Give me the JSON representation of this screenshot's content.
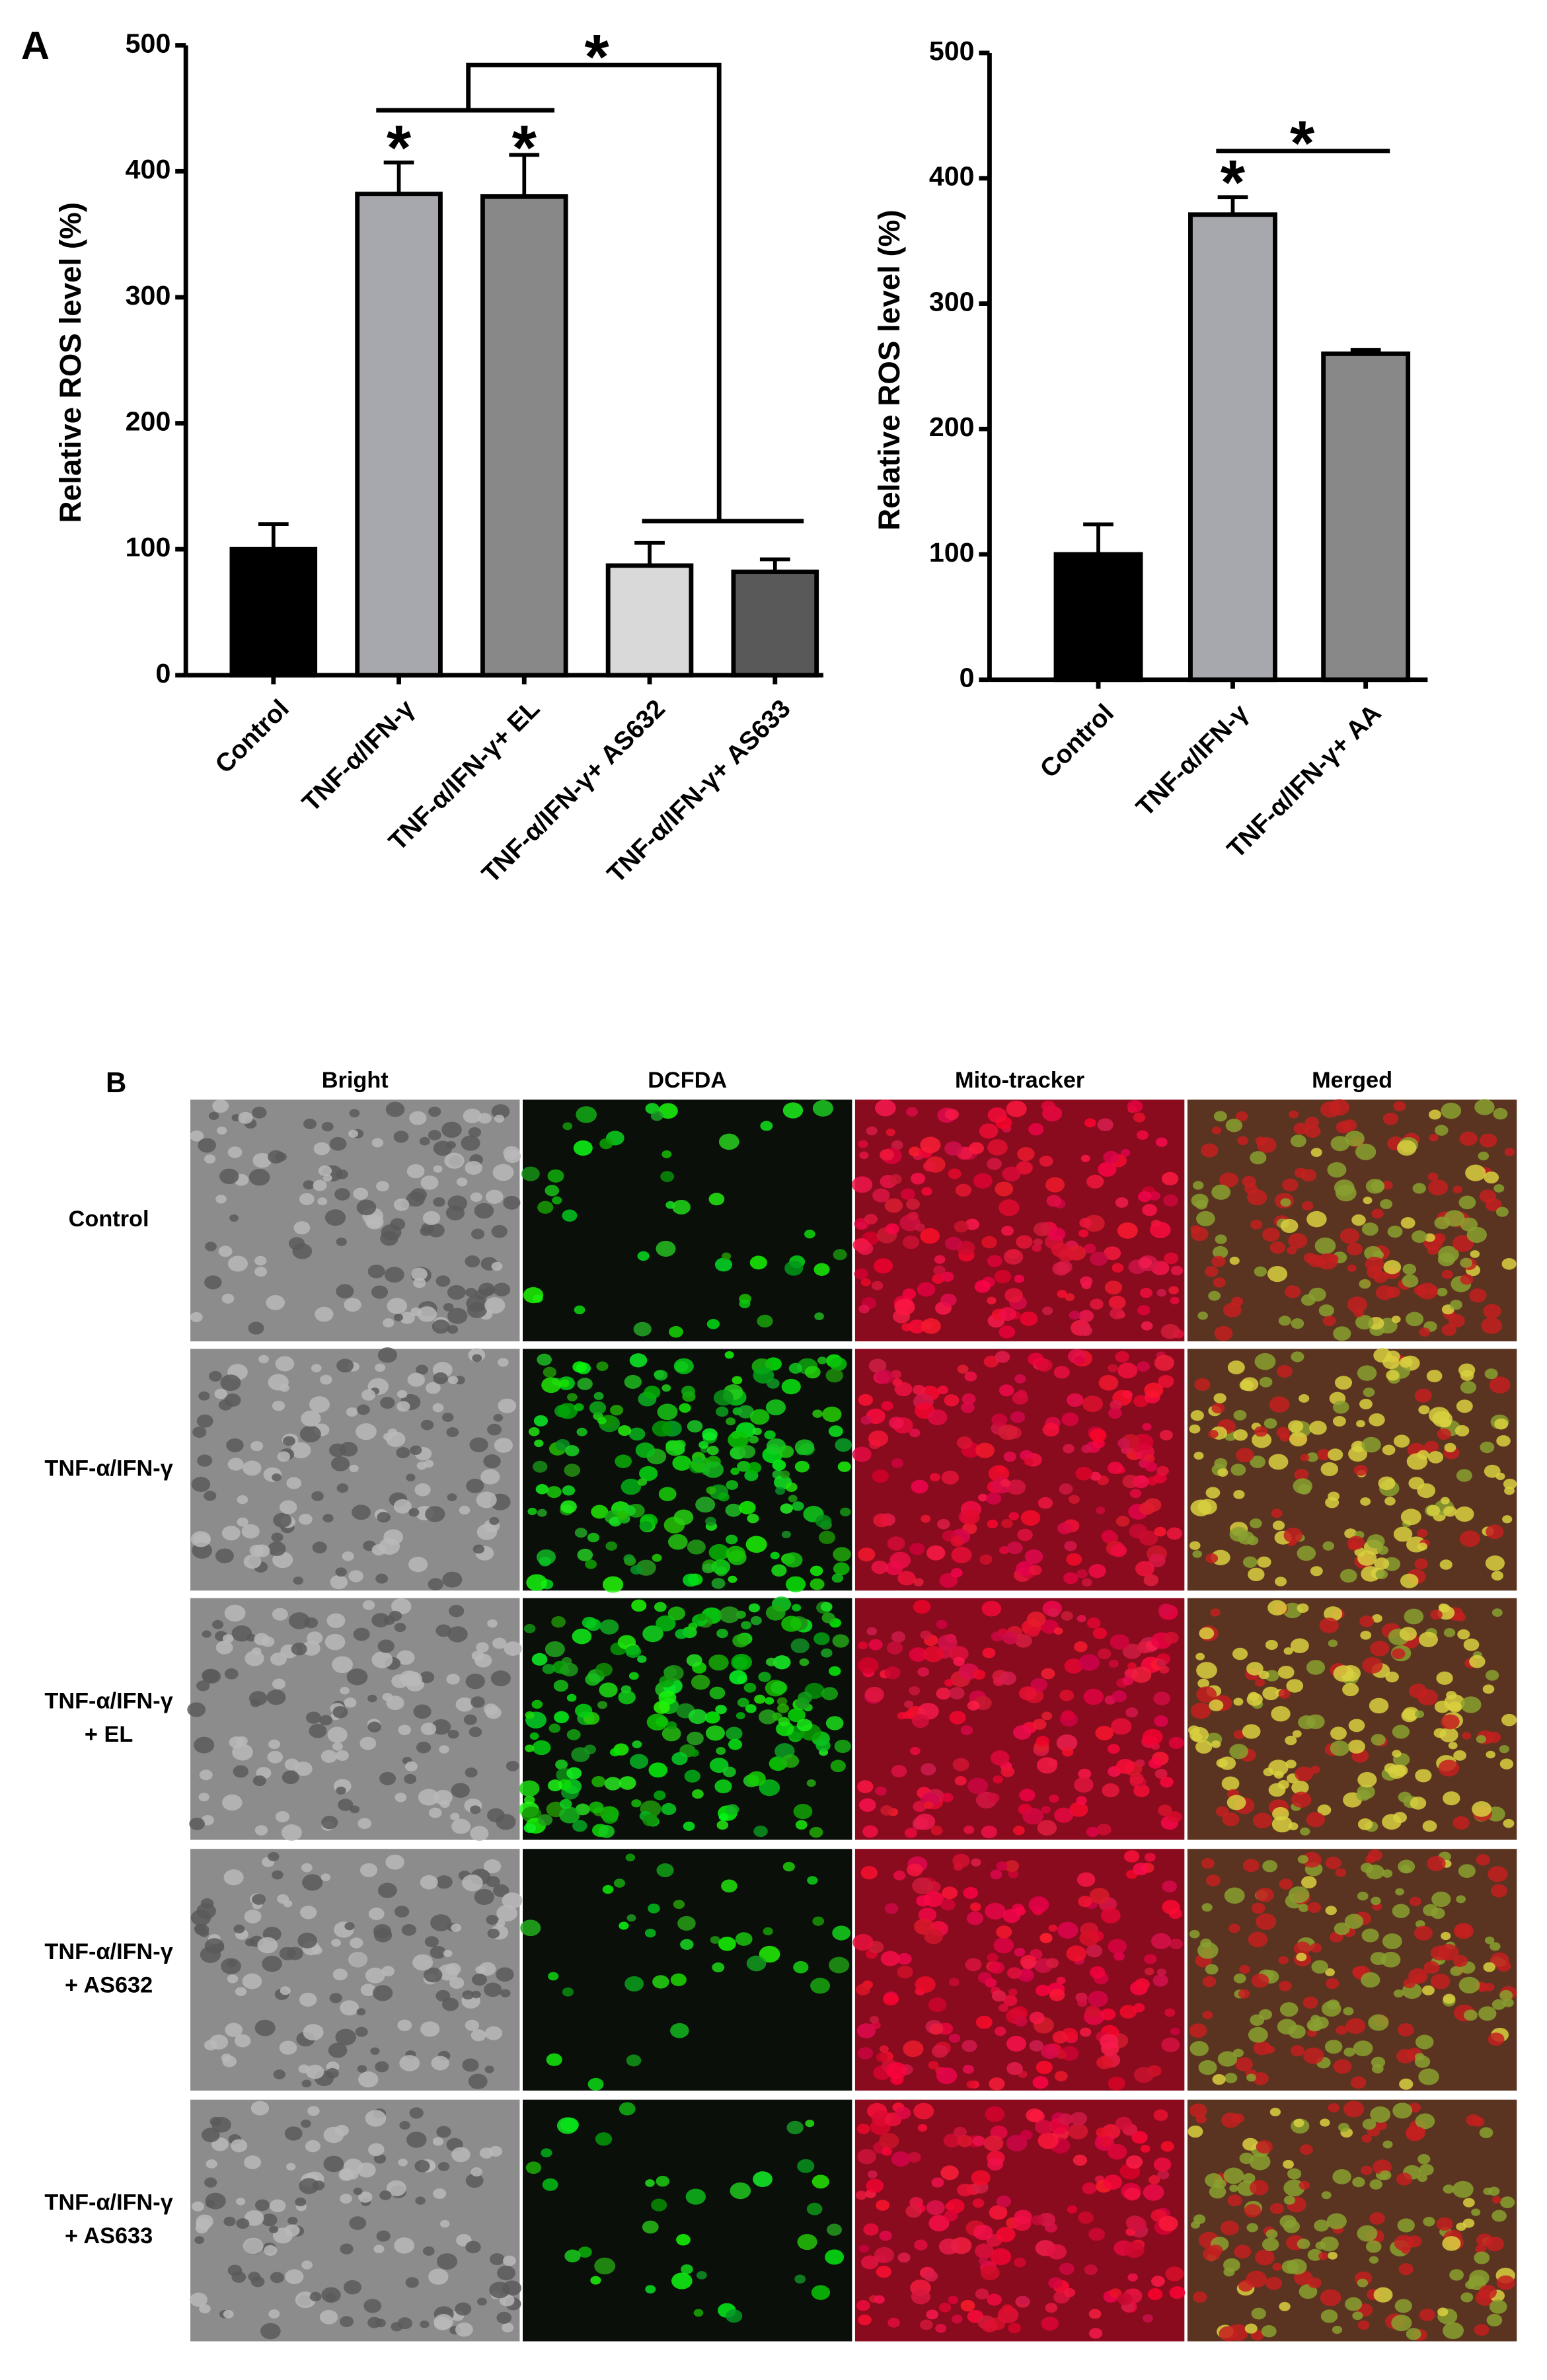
{
  "panel_labels": [
    "A",
    "B"
  ],
  "chart_data": [
    {
      "type": "bar",
      "y_label": "Relative ROS level (%)",
      "categories": [
        "Control",
        "TNF-α/IFN-γ",
        "TNF-α/IFN-γ+ EL",
        "TNF-α/IFN-γ+ AS632",
        "TNF-α/IFN-γ+ AS633"
      ],
      "values": [
        100,
        382,
        380,
        87,
        82
      ],
      "errors": [
        20,
        25,
        33,
        18,
        10
      ],
      "colors": [
        "#000000",
        "#a7a7ae",
        "#888888",
        "#d9d9d9",
        "#595959"
      ],
      "ylim": [
        0,
        500
      ],
      "yticks": [
        0,
        100,
        200,
        300,
        400,
        500
      ],
      "significance": [
        "*",
        "*",
        "*"
      ]
    },
    {
      "type": "bar",
      "y_label": "Relative ROS level (%)",
      "categories": [
        "Control",
        "TNF-α/IFN-γ",
        "TNF-α/IFN-γ+ AA"
      ],
      "values": [
        100,
        371,
        260
      ],
      "errors": [
        24,
        14,
        3
      ],
      "colors": [
        "#000000",
        "#a7a7ae",
        "#888888"
      ],
      "ylim": [
        0,
        500
      ],
      "yticks": [
        0,
        100,
        200,
        300,
        400,
        500
      ],
      "significance": [
        "*",
        "*"
      ]
    }
  ],
  "panel_b": {
    "columns": [
      "Bright",
      "DCFDA",
      "Mito-tracker",
      "Merged"
    ],
    "rows": [
      [
        "Control"
      ],
      [
        "TNF-α/IFN-γ"
      ],
      [
        "TNF-α/IFN-γ",
        "+ EL"
      ],
      [
        "TNF-α/IFN-γ",
        "+ AS632"
      ],
      [
        "TNF-α/IFN-γ",
        "+ AS633"
      ]
    ]
  }
}
